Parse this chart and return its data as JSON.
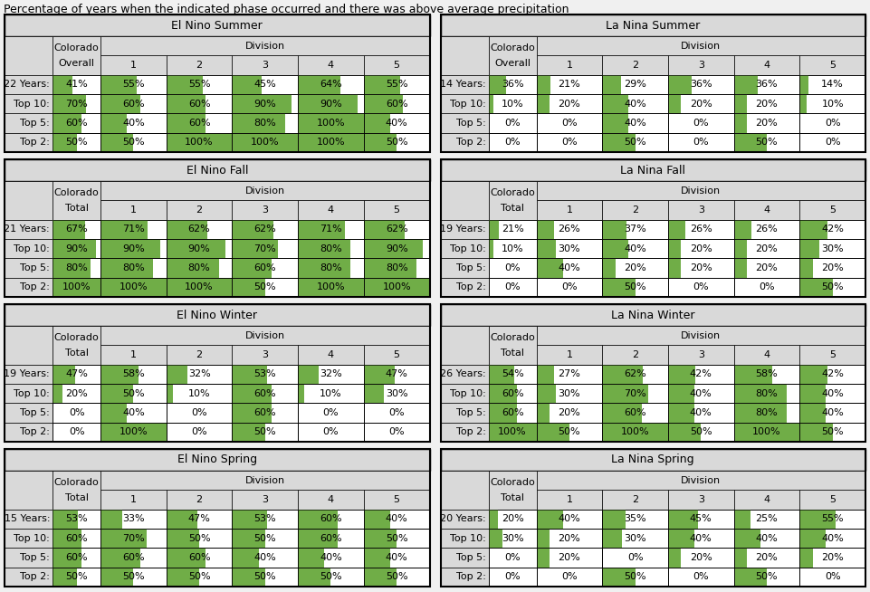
{
  "title": "Percentage of years when the indicated phase occurred and there was above average precipitation",
  "tables": [
    {
      "title": "El Nino Summer",
      "col1_label": "Colorado\nOverall",
      "row_labels": [
        "22 Years:",
        "Top 10:",
        "Top 5:",
        "Top 2:"
      ],
      "data": [
        [
          41,
          55,
          55,
          45,
          64,
          55
        ],
        [
          70,
          60,
          60,
          90,
          90,
          60
        ],
        [
          60,
          40,
          60,
          80,
          100,
          40
        ],
        [
          50,
          50,
          100,
          100,
          100,
          50
        ]
      ]
    },
    {
      "title": "La Nina Summer",
      "col1_label": "Colorado\nOverall",
      "row_labels": [
        "14 Years:",
        "Top 10:",
        "Top 5:",
        "Top 2:"
      ],
      "data": [
        [
          36,
          21,
          29,
          36,
          36,
          14
        ],
        [
          10,
          20,
          40,
          20,
          20,
          10
        ],
        [
          0,
          0,
          40,
          0,
          20,
          0
        ],
        [
          0,
          0,
          50,
          0,
          50,
          0
        ]
      ]
    },
    {
      "title": "El Nino Fall",
      "col1_label": "Colorado\nTotal",
      "row_labels": [
        "21 Years:",
        "Top 10:",
        "Top 5:",
        "Top 2:"
      ],
      "data": [
        [
          67,
          71,
          62,
          62,
          71,
          62
        ],
        [
          90,
          90,
          90,
          70,
          80,
          90
        ],
        [
          80,
          80,
          80,
          60,
          80,
          80
        ],
        [
          100,
          100,
          100,
          50,
          100,
          100
        ]
      ]
    },
    {
      "title": "La Nina Fall",
      "col1_label": "Colorado\nTotal",
      "row_labels": [
        "19 Years:",
        "Top 10:",
        "Top 5:",
        "Top 2:"
      ],
      "data": [
        [
          21,
          26,
          37,
          26,
          26,
          42
        ],
        [
          10,
          30,
          40,
          20,
          20,
          30
        ],
        [
          0,
          40,
          20,
          20,
          20,
          20
        ],
        [
          0,
          0,
          50,
          0,
          0,
          50
        ]
      ]
    },
    {
      "title": "El Nino Winter",
      "col1_label": "Colorado\nTotal",
      "row_labels": [
        "19 Years:",
        "Top 10:",
        "Top 5:",
        "Top 2:"
      ],
      "data": [
        [
          47,
          58,
          32,
          53,
          32,
          47
        ],
        [
          20,
          50,
          10,
          60,
          10,
          30
        ],
        [
          0,
          40,
          0,
          60,
          0,
          0
        ],
        [
          0,
          100,
          0,
          50,
          0,
          0
        ]
      ]
    },
    {
      "title": "La Nina Winter",
      "col1_label": "Colorado\nTotal",
      "row_labels": [
        "26 Years:",
        "Top 10:",
        "Top 5:",
        "Top 2:"
      ],
      "data": [
        [
          54,
          27,
          62,
          42,
          58,
          42
        ],
        [
          60,
          30,
          70,
          40,
          80,
          40
        ],
        [
          60,
          20,
          60,
          40,
          80,
          40
        ],
        [
          100,
          50,
          100,
          50,
          100,
          50
        ]
      ]
    },
    {
      "title": "El Nino Spring",
      "col1_label": "Colorado\nTotal",
      "row_labels": [
        "15 Years:",
        "Top 10:",
        "Top 5:",
        "Top 2:"
      ],
      "data": [
        [
          53,
          33,
          47,
          53,
          60,
          40
        ],
        [
          60,
          70,
          50,
          50,
          60,
          50
        ],
        [
          60,
          60,
          60,
          40,
          40,
          40
        ],
        [
          50,
          50,
          50,
          50,
          50,
          50
        ]
      ]
    },
    {
      "title": "La Nina Spring",
      "col1_label": "Colorado\nTotal",
      "row_labels": [
        "20 Years:",
        "Top 10:",
        "Top 5:",
        "Top 2:"
      ],
      "data": [
        [
          20,
          40,
          35,
          45,
          25,
          55
        ],
        [
          30,
          20,
          30,
          40,
          40,
          40
        ],
        [
          0,
          20,
          0,
          20,
          20,
          20
        ],
        [
          0,
          0,
          50,
          0,
          50,
          0
        ]
      ]
    }
  ],
  "bg_color": "#f0f0f0",
  "header_bg": "#d9d9d9",
  "title_bg": "#d9d9d9",
  "cell_fill_color": "#70ad47",
  "cell_bg_color": "#ffffff",
  "border_color": "#000000",
  "text_color": "#000000",
  "title_fontsize": 9,
  "cell_fontsize": 8,
  "header_fontsize": 8,
  "fig_w": 9.61,
  "fig_h": 6.54,
  "dpi": 100
}
